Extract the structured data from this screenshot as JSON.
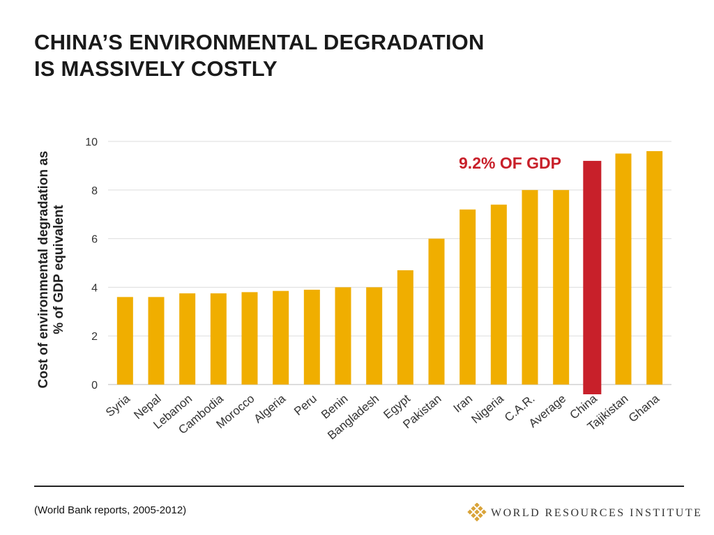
{
  "title": {
    "line1": "CHINA’S ENVIRONMENTAL DEGRADATION",
    "line2": "IS MASSIVELY COSTLY"
  },
  "footer": {
    "source": "(World Bank reports, 2005-2012)",
    "logo_text": "WORLD RESOURCES INSTITUTE",
    "logo_icon": "wri-lattice-logo-icon"
  },
  "colors": {
    "bar": "#F0AE00",
    "highlight": "#C8202A",
    "grid": "#DDDDDD",
    "logo": "#D9A43A"
  },
  "chart_data": {
    "type": "bar",
    "ylabel_line1": "Cost of environmental degradation as",
    "ylabel_line2": "% of GDP equivalent",
    "xlabel": "",
    "ylim": [
      0,
      10
    ],
    "yticks": [
      0,
      2,
      4,
      6,
      8,
      10
    ],
    "grid": true,
    "categories": [
      "Syria",
      "Nepal",
      "Lebanon",
      "Cambodia",
      "Morocco",
      "Algeria",
      "Peru",
      "Benin",
      "Bangladesh",
      "Egypt",
      "Pakistan",
      "Iran",
      "Nigeria",
      "C.A.R.",
      "Average",
      "China",
      "Tajikistan",
      "Ghana"
    ],
    "values": [
      3.6,
      3.6,
      3.75,
      3.75,
      3.8,
      3.85,
      3.9,
      4.0,
      4.0,
      4.7,
      6.0,
      7.2,
      7.4,
      8.0,
      8.0,
      9.2,
      9.5,
      9.6
    ],
    "highlight_category": "China",
    "annotation": "9.2% OF GDP"
  }
}
